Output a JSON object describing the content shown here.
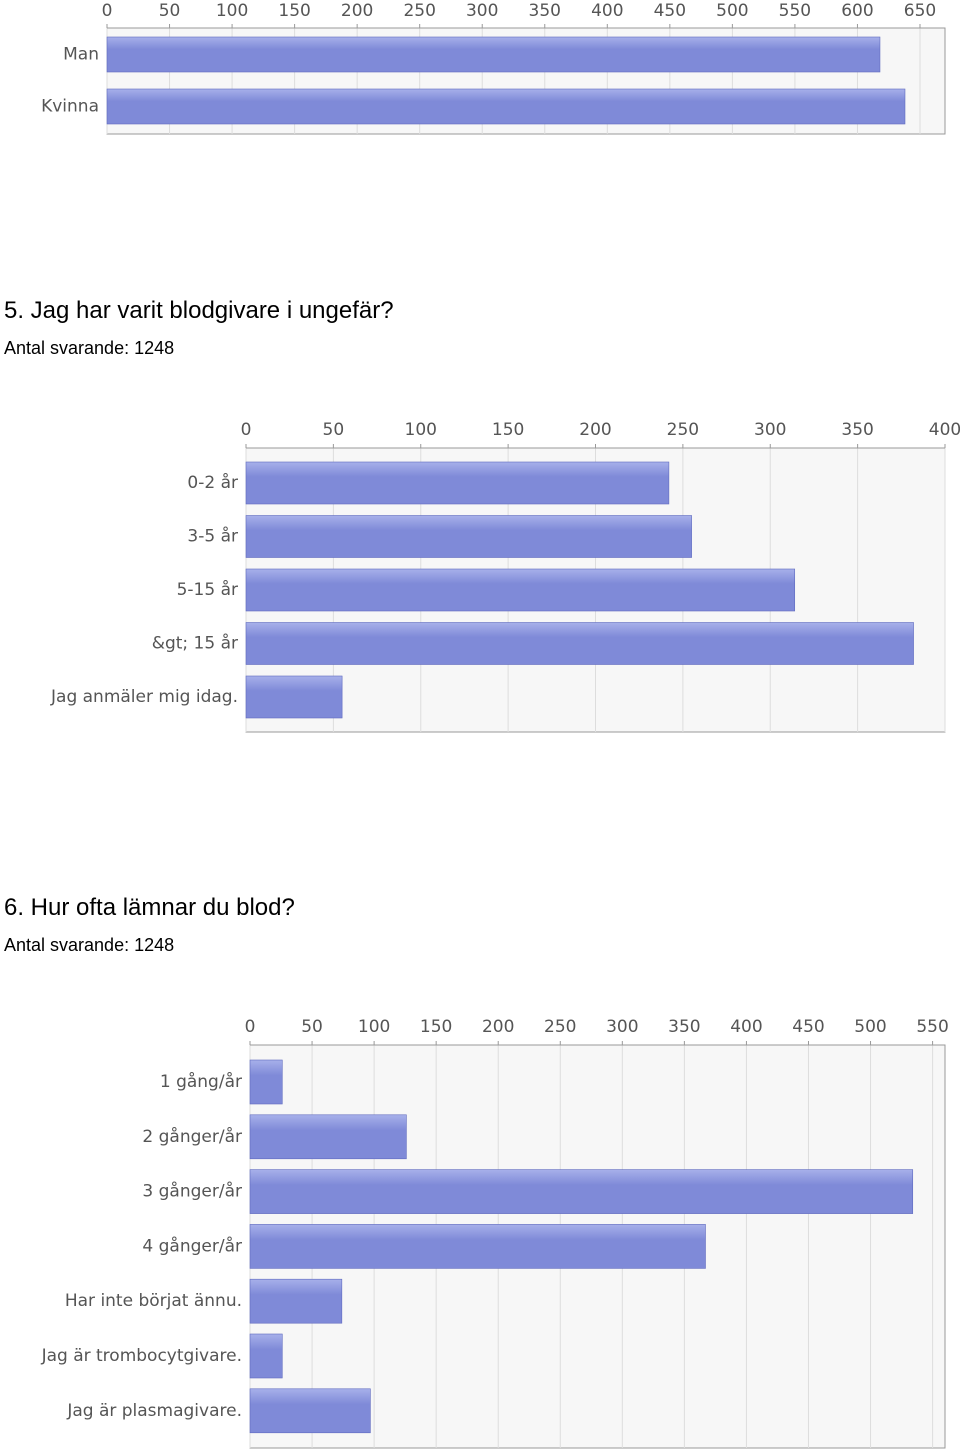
{
  "sections": [
    {
      "title": "",
      "respondents_label": "",
      "respondents_count": ""
    },
    {
      "title": "5. Jag har varit blodgivare i ungefär?",
      "respondents_label": "Antal svarande:",
      "respondents_count": "1248"
    },
    {
      "title": "6. Hur ofta lämnar du blod?",
      "respondents_label": "Antal svarande:",
      "respondents_count": "1248"
    }
  ],
  "colors": {
    "bar_fill": "#7f8ad8",
    "bar_highlight": "#a7b0ea",
    "bar_border": "#5f6abf",
    "grid": "#dddddd",
    "axis": "#999999",
    "plot_bg": "#f7f7f7"
  },
  "chart_data": [
    {
      "type": "bar",
      "orientation": "horizontal",
      "title": "",
      "categories": [
        "Man",
        "Kvinna"
      ],
      "values": [
        618,
        638
      ],
      "xlim": [
        0,
        670
      ],
      "ticks": [
        0,
        50,
        100,
        150,
        200,
        250,
        300,
        350,
        400,
        450,
        500,
        550,
        600,
        650
      ],
      "grid": true,
      "legend": "none"
    },
    {
      "type": "bar",
      "orientation": "horizontal",
      "title": "5. Jag har varit blodgivare i ungefär?",
      "categories": [
        "0-2 år",
        "3-5 år",
        "5-15 år",
        "&gt; 15 år",
        "Jag anmäler mig idag."
      ],
      "values": [
        242,
        255,
        314,
        382,
        55
      ],
      "xlim": [
        0,
        400
      ],
      "ticks": [
        0,
        50,
        100,
        150,
        200,
        250,
        300,
        350,
        400
      ],
      "grid": true,
      "legend": "none"
    },
    {
      "type": "bar",
      "orientation": "horizontal",
      "title": "6. Hur ofta lämnar du blod?",
      "categories": [
        "1 gång/år",
        "2 gånger/år",
        "3 gånger/år",
        "4 gånger/år",
        "Har inte börjat ännu.",
        "Jag är trombocytgivare.",
        "Jag är plasmagivare."
      ],
      "values": [
        26,
        126,
        534,
        367,
        74,
        26,
        97
      ],
      "xlim": [
        0,
        560
      ],
      "ticks": [
        0,
        50,
        100,
        150,
        200,
        250,
        300,
        350,
        400,
        450,
        500,
        550
      ],
      "grid": true,
      "legend": "none"
    }
  ]
}
